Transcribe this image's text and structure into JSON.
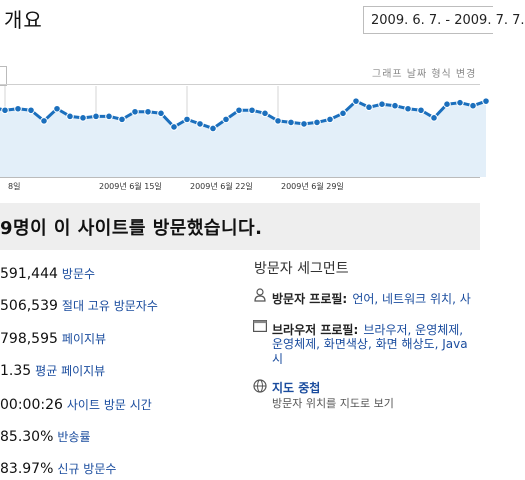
{
  "header": {
    "title": "개요",
    "date_range": "2009. 6. 7. - 2009. 7. 7.",
    "graph_options": "그래프 날짜 형식 변경"
  },
  "chart_data": {
    "type": "area",
    "x_labels": [
      "8일",
      "2009년 6월 15일",
      "2009년 6월 22일",
      "2009년 6월 29일"
    ],
    "values": [
      46,
      44,
      45,
      44,
      37,
      45,
      40,
      39,
      40,
      40,
      38,
      43,
      43,
      42,
      33,
      38,
      35,
      32,
      38,
      44,
      44,
      42,
      37,
      36,
      35,
      36,
      38,
      42,
      50,
      46,
      48,
      47,
      45,
      44,
      39,
      48,
      49,
      47,
      50
    ],
    "ylim": [
      0,
      60
    ],
    "colors": {
      "line": "#1b6fbd",
      "fill": "#e3eff9",
      "grid": "#d6d6d6"
    }
  },
  "summary": {
    "text": "9명이 이 사이트를 방문했습니다."
  },
  "metrics": [
    {
      "value": "591,444",
      "label": "방문수"
    },
    {
      "value": "506,539",
      "label": "절대 고유 방문자수"
    },
    {
      "value": "798,595",
      "label": "페이지뷰"
    },
    {
      "value": "1.35",
      "label": "평균 페이지뷰"
    },
    {
      "value": "00:00:26",
      "label": "사이트 방문 시간"
    },
    {
      "value": "85.30%",
      "label": "반송률"
    },
    {
      "value": "83.97%",
      "label": "신규 방문수"
    }
  ],
  "segments": {
    "title": "방문자 세그먼트",
    "visitor_profile": {
      "head": "방문자 프로필:",
      "links": "언어, 네트워크 위치, 사"
    },
    "browser_profile": {
      "head": "브라우저 프로필:",
      "links_line1": "브라우저, 운영체제,",
      "links_line2": "운영체제, 화면색상, 화면 해상도, Java",
      "links_line3": "시"
    },
    "map_overlay": {
      "head": "지도 중첩",
      "desc": "방문자 위치를 지도로 보기"
    }
  }
}
